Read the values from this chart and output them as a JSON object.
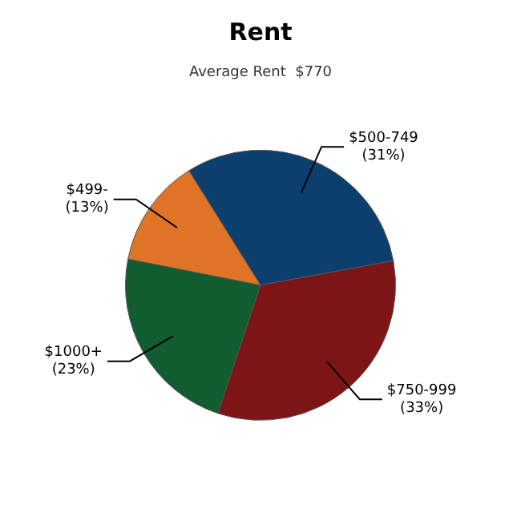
{
  "chart_data": {
    "type": "pie",
    "title": "Rent",
    "subtitle": "Average Rent  $770",
    "categories": [
      "$500-749",
      "$750-999",
      "$1000+",
      "$499-"
    ],
    "values": [
      31,
      33,
      23,
      13
    ],
    "value_labels": [
      "(31%)",
      "(33%)",
      "(23%)",
      "(13%)"
    ],
    "colors": [
      "#0d3f6e",
      "#7d1416",
      "#125c32",
      "#e07426"
    ],
    "legend": false
  }
}
